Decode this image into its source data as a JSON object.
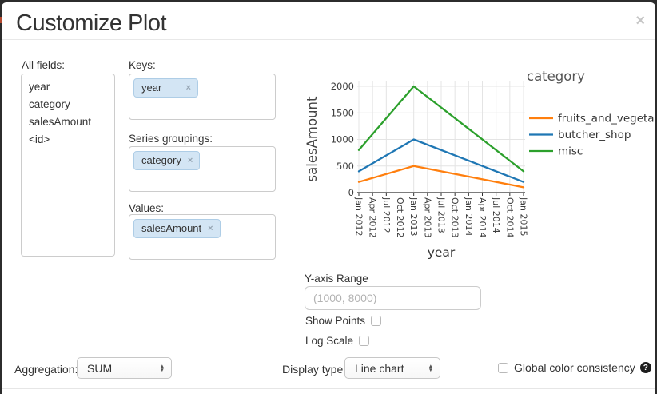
{
  "window": {
    "title": "Customize Plot",
    "close_label": "×"
  },
  "fields_panel": {
    "label": "All fields:",
    "items": [
      "year",
      "category",
      "salesAmount",
      "<id>"
    ]
  },
  "mapping": {
    "keys": {
      "label": "Keys:",
      "tags": [
        {
          "text": "year",
          "remove_label": "×"
        }
      ]
    },
    "series_groupings": {
      "label": "Series groupings:",
      "tags": [
        {
          "text": "category",
          "remove_label": "×"
        }
      ]
    },
    "values": {
      "label": "Values:",
      "tags": [
        {
          "text": "salesAmount",
          "remove_label": "×"
        }
      ]
    }
  },
  "chart_data": {
    "type": "line",
    "title": "",
    "xlabel": "year",
    "ylabel": "salesAmount",
    "legend_title": "category",
    "legend_position": "right",
    "grid": true,
    "ylim": [
      0,
      2000
    ],
    "y_ticks": [
      0,
      500,
      1000,
      1500,
      2000
    ],
    "x_ticks": [
      "Jan 2012",
      "Apr 2012",
      "Jul 2012",
      "Oct 2012",
      "Jan 2013",
      "Apr 2013",
      "Jul 2013",
      "Oct 2013",
      "Jan 2014",
      "Apr 2014",
      "Jul 2014",
      "Oct 2014",
      "Jan 2015"
    ],
    "x": [
      "Jan 2012",
      "Jan 2013",
      "Jan 2014",
      "Jan 2015"
    ],
    "series": [
      {
        "name": "fruits_and_vegetables",
        "color": "#ff7f0e",
        "values": [
          200,
          500,
          300,
          100
        ]
      },
      {
        "name": "butcher_shop",
        "color": "#1f77b4",
        "values": [
          400,
          1000,
          600,
          200
        ]
      },
      {
        "name": "misc",
        "color": "#2ca02c",
        "values": [
          800,
          2000,
          1200,
          400
        ]
      }
    ]
  },
  "controls": {
    "y_axis_range": {
      "label": "Y-axis Range",
      "placeholder": "(1000, 8000)",
      "value": ""
    },
    "show_points": {
      "label": "Show Points",
      "checked": false
    },
    "log_scale": {
      "label": "Log Scale",
      "checked": false
    },
    "aggregation": {
      "label": "Aggregation:",
      "value": "SUM"
    },
    "display_type": {
      "label": "Display type:",
      "value": "Line chart"
    },
    "global_color_consistency": {
      "label": "Global color consistency",
      "checked": false,
      "help_icon": "?"
    }
  }
}
